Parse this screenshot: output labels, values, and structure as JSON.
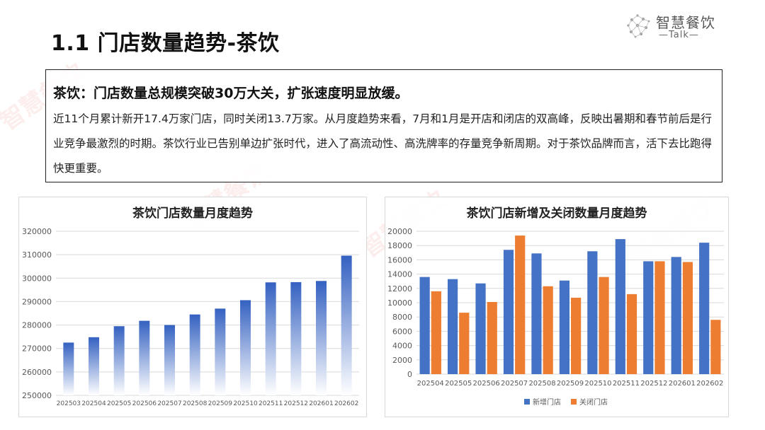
{
  "page": {
    "title": "1.1 门店数量趋势-茶饮"
  },
  "logo": {
    "name": "智慧餐饮",
    "sub": "—Talk—"
  },
  "watermark": "智慧餐饮",
  "summary": {
    "headline": "茶饮：门店数量总规模突破30万大关，扩张速度明显放缓。",
    "body": "近11个月累计新开17.4万家门店，同时关闭13.7万家。从月度趋势来看，7月和1月是开店和闭店的双高峰，反映出暑期和春节前后是行业竞争最激烈的时期。茶饮行业已告别单边扩张时代，进入了高流动性、高洗牌率的存量竞争新周期。对于茶饮品牌而言，活下去比跑得快更重要。"
  },
  "colors": {
    "bar_blue": "#4472C4",
    "bar_orange": "#ED7D31",
    "grid": "#d9d9d9",
    "tick": "#595959"
  },
  "chart_data": [
    {
      "type": "bar",
      "title": "茶饮门店数量月度趋势",
      "categories": [
        "202503",
        "202504",
        "202505",
        "202506",
        "202507",
        "202508",
        "202509",
        "202510",
        "202511",
        "202512",
        "202601",
        "202602"
      ],
      "values": [
        272500,
        274800,
        279500,
        281800,
        280000,
        284500,
        287000,
        290600,
        298200,
        298300,
        298800,
        309600
      ],
      "ylim": [
        250000,
        320000
      ],
      "yticks": [
        250000,
        260000,
        270000,
        280000,
        290000,
        300000,
        310000,
        320000
      ],
      "grid": true,
      "legend": "none"
    },
    {
      "type": "bar",
      "title": "茶饮门店新增及关闭数量月度趋势",
      "categories": [
        "202504",
        "202505",
        "202506",
        "202507",
        "202508",
        "202509",
        "202510",
        "202511",
        "202512",
        "202601",
        "202602"
      ],
      "series": [
        {
          "name": "新增门店",
          "values": [
            13600,
            13300,
            12700,
            17400,
            16900,
            13100,
            17200,
            18900,
            15800,
            16400,
            18400
          ]
        },
        {
          "name": "关闭门店",
          "values": [
            11600,
            8600,
            10100,
            19400,
            12300,
            10700,
            13600,
            11200,
            15800,
            15700,
            7600
          ]
        }
      ],
      "ylim": [
        0,
        20000
      ],
      "yticks": [
        0,
        2000,
        4000,
        6000,
        8000,
        10000,
        12000,
        14000,
        16000,
        18000,
        20000
      ],
      "grid": true,
      "legend": "bottom"
    }
  ]
}
